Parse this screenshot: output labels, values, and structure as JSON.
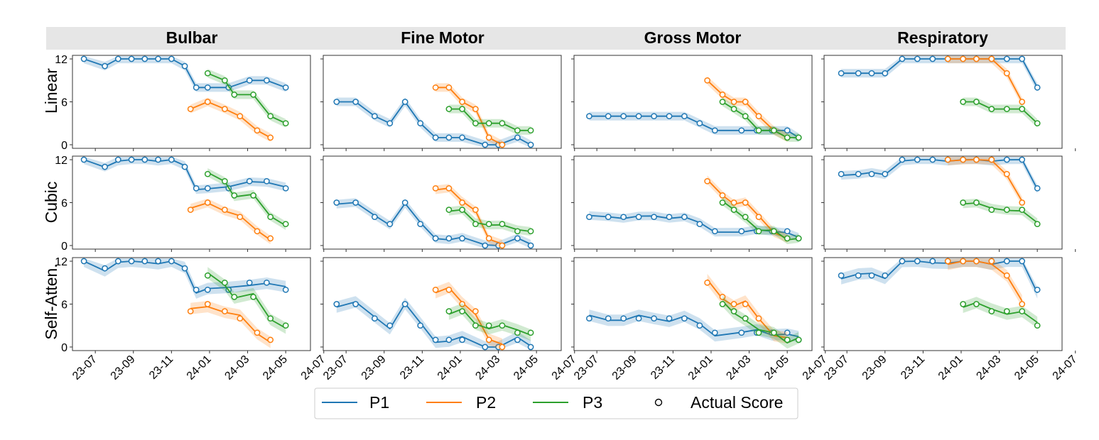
{
  "chart_data": {
    "type": "line",
    "columns": [
      "Bulbar",
      "Fine Motor",
      "Gross Motor",
      "Respiratory"
    ],
    "rows": [
      "Linear",
      "Cubic",
      "Self-Atten."
    ],
    "x_ticks": [
      "23-07",
      "23-09",
      "23-11",
      "24-01",
      "24-03",
      "24-05",
      "24-07"
    ],
    "x_tick_months": [
      0,
      2,
      4,
      6,
      8,
      10,
      12
    ],
    "x_unit": "months since 2023-07",
    "y_ticks": [
      0,
      6,
      12
    ],
    "ylim": [
      -0.5,
      12.5
    ],
    "legend": [
      {
        "key": "P1",
        "label": "P1",
        "type": "line",
        "color": "#1f77b4"
      },
      {
        "key": "P2",
        "label": "P2",
        "type": "line",
        "color": "#ff7f0e"
      },
      {
        "key": "P3",
        "label": "P3",
        "type": "line",
        "color": "#2ca02c"
      },
      {
        "key": "actual",
        "label": "Actual Score",
        "type": "marker",
        "color": "#000000"
      }
    ],
    "colors": {
      "P1": "#1f77b4",
      "P2": "#ff7f0e",
      "P3": "#2ca02c",
      "header_bg": "#e6e6e6"
    },
    "series": {
      "Bulbar": {
        "P1": {
          "x": [
            -0.6,
            0.5,
            1.2,
            1.9,
            2.6,
            3.3,
            4.0,
            4.7,
            5.3,
            5.9,
            7.0,
            8.1,
            9.0,
            10.0
          ],
          "y": [
            12,
            11,
            12,
            12,
            12,
            12,
            12,
            11,
            8,
            8,
            8,
            9,
            9,
            8
          ]
        },
        "P2": {
          "x": [
            5.0,
            5.9,
            6.8,
            7.6,
            8.5,
            9.2
          ],
          "y": [
            5,
            6,
            5,
            4,
            2,
            1
          ]
        },
        "P3": {
          "x": [
            5.9,
            6.8,
            7.3,
            8.3,
            9.2,
            10.0
          ],
          "y": [
            10,
            9,
            7,
            7,
            4,
            3
          ]
        }
      },
      "Fine Motor": {
        "P1": {
          "x": [
            -0.5,
            0.5,
            1.5,
            2.3,
            3.1,
            3.9,
            4.7,
            5.4,
            6.1,
            7.3,
            8.0,
            9.0,
            9.7
          ],
          "y": [
            6,
            6,
            4,
            3,
            6,
            3,
            1,
            1,
            1,
            0,
            0,
            1,
            0
          ]
        },
        "P2": {
          "x": [
            4.7,
            5.4,
            6.1,
            6.8,
            7.5,
            8.2
          ],
          "y": [
            8,
            8,
            6,
            5,
            1,
            0
          ]
        },
        "P3": {
          "x": [
            5.4,
            6.1,
            6.8,
            7.5,
            8.2,
            9.0,
            9.7
          ],
          "y": [
            5,
            5,
            3,
            3,
            3,
            2,
            2
          ]
        }
      },
      "Gross Motor": {
        "P1": {
          "x": [
            -0.4,
            0.6,
            1.4,
            2.2,
            3.0,
            3.8,
            4.6,
            5.4,
            6.2,
            7.6,
            8.4,
            9.2,
            10.0,
            10.6
          ],
          "y": [
            4,
            4,
            4,
            4,
            4,
            4,
            4,
            3,
            2,
            2,
            2,
            2,
            2,
            1
          ]
        },
        "P2": {
          "x": [
            5.8,
            6.6,
            7.2,
            7.8,
            8.5,
            9.3,
            10.0
          ],
          "y": [
            9,
            7,
            6,
            6,
            4,
            2,
            1
          ]
        },
        "P3": {
          "x": [
            6.6,
            7.2,
            7.8,
            8.5,
            9.3,
            10.0,
            10.6
          ],
          "y": [
            6,
            5,
            4,
            2,
            2,
            1,
            1
          ]
        }
      },
      "Respiratory": {
        "P1": {
          "x": [
            -0.3,
            0.6,
            1.3,
            2.0,
            2.9,
            3.7,
            4.5,
            5.3,
            6.1,
            6.8,
            7.6,
            8.4,
            9.2,
            10.0
          ],
          "y": [
            10,
            10,
            10,
            10,
            12,
            12,
            12,
            12,
            12,
            12,
            12,
            12,
            12,
            8
          ]
        },
        "P2": {
          "x": [
            5.3,
            6.1,
            6.8,
            7.6,
            8.4,
            9.2
          ],
          "y": [
            12,
            12,
            12,
            12,
            10,
            6
          ]
        },
        "P3": {
          "x": [
            6.1,
            6.8,
            7.6,
            8.4,
            9.2,
            10.0
          ],
          "y": [
            6,
            6,
            5,
            5,
            5,
            3
          ]
        }
      }
    }
  }
}
